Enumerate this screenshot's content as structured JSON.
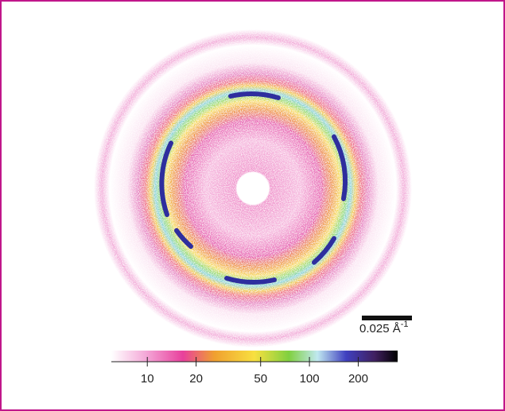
{
  "scale_bar": {
    "label": "0.025 Å",
    "exponent": "-1"
  },
  "colorbar": {
    "log": true,
    "lim": [
      6,
      350
    ],
    "ticks": [
      10,
      20,
      50,
      100,
      200
    ]
  }
}
